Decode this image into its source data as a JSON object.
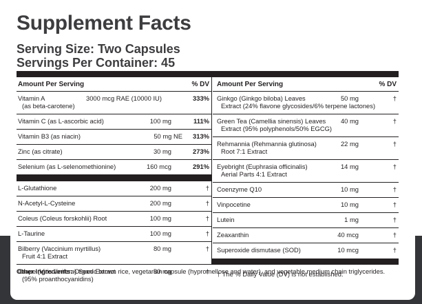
{
  "header": {
    "title": "Supplement Facts",
    "serving_size": "Serving Size: Two Capsules",
    "servings_per_container": "Servings Per Container: 45"
  },
  "left_table": {
    "col_amount_header": "Amount Per Serving",
    "col_dv_header": "% DV",
    "dv_rows": [
      {
        "name": "Vitamin A",
        "name2": "(as beta-carotene)",
        "amount": "3000 mcg RAE (10000 IU)",
        "dv": "333%"
      },
      {
        "name": "Vitamin C (as L-ascorbic acid)",
        "amount": "100 mg",
        "dv": "111%"
      },
      {
        "name": "Vitamin B3 (as niacin)",
        "amount": "50 mg NE",
        "dv": "313%"
      },
      {
        "name": "Zinc (as citrate)",
        "amount": "30 mg",
        "dv": "273%"
      },
      {
        "name": "Selenium (as L-selenomethionine)",
        "amount": "160 mcg",
        "dv": "291%"
      }
    ],
    "other_rows": [
      {
        "name": "L-Glutathione",
        "amount": "200 mg",
        "dv": "†"
      },
      {
        "name": "N-Acetyl-L-Cysteine",
        "amount": "200 mg",
        "dv": "†"
      },
      {
        "name": "Coleus (Coleus forskohlii) Root",
        "amount": "100 mg",
        "dv": "†"
      },
      {
        "name": "L-Taurine",
        "amount": "100 mg",
        "dv": "†"
      },
      {
        "name": "Bilberry (Vaccinium myrtillus)",
        "name2": "Fruit 4:1 Extract",
        "amount": "80 mg",
        "dv": "†"
      },
      {
        "name": "Grape (Vitis vinifera) Seed Extract",
        "name2": "(95% proanthocyanidins)",
        "amount": "80 mg",
        "dv": "†"
      }
    ]
  },
  "right_table": {
    "col_amount_header": "Amount Per Serving",
    "col_dv_header": "% DV",
    "rows": [
      {
        "name": "Ginkgo (Ginkgo biloba) Leaves",
        "name2": "Extract (24% flavone glycosides/6% terpene lactones)",
        "amount": "50 mg",
        "dv": "†"
      },
      {
        "name": "Green Tea (Camellia sinensis) Leaves",
        "name2": "Extract (95% polyphenols/50% EGCG)",
        "amount": "40 mg",
        "dv": "†"
      },
      {
        "name": "Rehmannia (Rehmannia glutinosa)",
        "name2": "Root 7:1 Extract",
        "amount": "22 mg",
        "dv": "†"
      },
      {
        "name": "Eyebright (Euphrasia officinalis)",
        "name2": "Aerial Parts 4:1 Extract",
        "amount": "14 mg",
        "dv": "†"
      },
      {
        "name": "Coenzyme Q10",
        "amount": "10 mg",
        "dv": "†"
      },
      {
        "name": "Vinpocetine",
        "amount": "10 mg",
        "dv": "†"
      },
      {
        "name": "Lutein",
        "amount": "1 mg",
        "dv": "†"
      },
      {
        "name": "Zeaxanthin",
        "amount": "40 mcg",
        "dv": "†"
      },
      {
        "name": "Superoxide dismutase (SOD)",
        "amount": "10 mcg",
        "dv": "†"
      }
    ],
    "footnote": "† The % Daily Value (DV) is not established."
  },
  "other_ingredients": {
    "label": "Other Ingredients:",
    "text": " Organic brown rice, vegetarian capsule (hypromellose and water), and vegetable medium chain triglycerides."
  },
  "colors": {
    "ink": "#231f20",
    "title": "#3d3d40",
    "band": "#343538"
  }
}
